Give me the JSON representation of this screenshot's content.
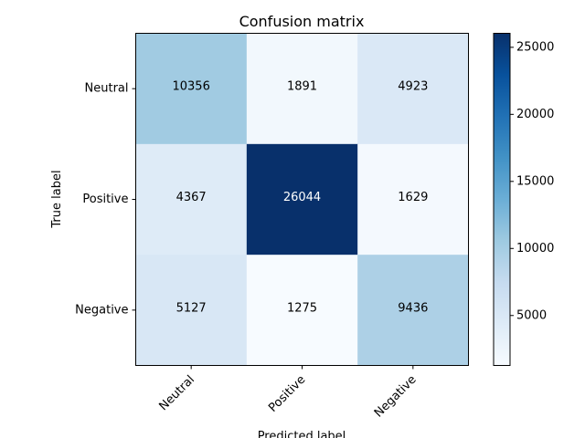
{
  "chart_data": {
    "type": "heatmap",
    "title": "Confusion matrix",
    "xlabel": "Predicted label",
    "ylabel": "True label",
    "x_categories": [
      "Neutral",
      "Positive",
      "Negative"
    ],
    "y_categories": [
      "Neutral",
      "Positive",
      "Negative"
    ],
    "values": [
      [
        10356,
        1891,
        4923
      ],
      [
        4367,
        26044,
        1629
      ],
      [
        5127,
        1275,
        9436
      ]
    ],
    "colormap": "Blues",
    "colorbar": {
      "min": 1275,
      "max": 26044,
      "ticks": [
        "5000",
        "10000",
        "15000",
        "20000",
        "25000"
      ]
    },
    "grid": false
  }
}
